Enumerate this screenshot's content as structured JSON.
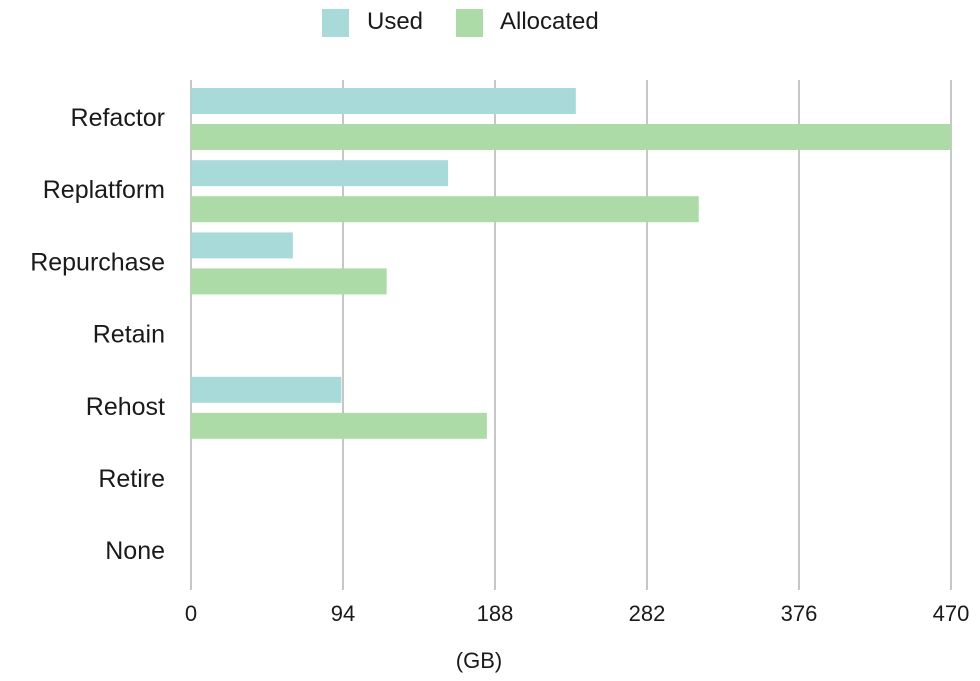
{
  "chart_data": {
    "type": "bar",
    "orientation": "horizontal",
    "categories": [
      "Refactor",
      "Replatform",
      "Repurchase",
      "Retain",
      "Rehost",
      "Retire",
      "None"
    ],
    "series": [
      {
        "name": "Used",
        "color": "#a8dad9",
        "values": [
          238,
          159,
          63,
          0,
          93,
          0,
          0
        ]
      },
      {
        "name": "Allocated",
        "color": "#acdba7",
        "values": [
          470,
          314,
          121,
          0,
          183,
          0,
          0
        ]
      }
    ],
    "xlabel": "(GB)",
    "xlim": [
      0,
      470
    ],
    "xticks": [
      "0",
      "94",
      "188",
      "282",
      "376",
      "470"
    ],
    "grid": "vertical",
    "legend": "top-center"
  }
}
